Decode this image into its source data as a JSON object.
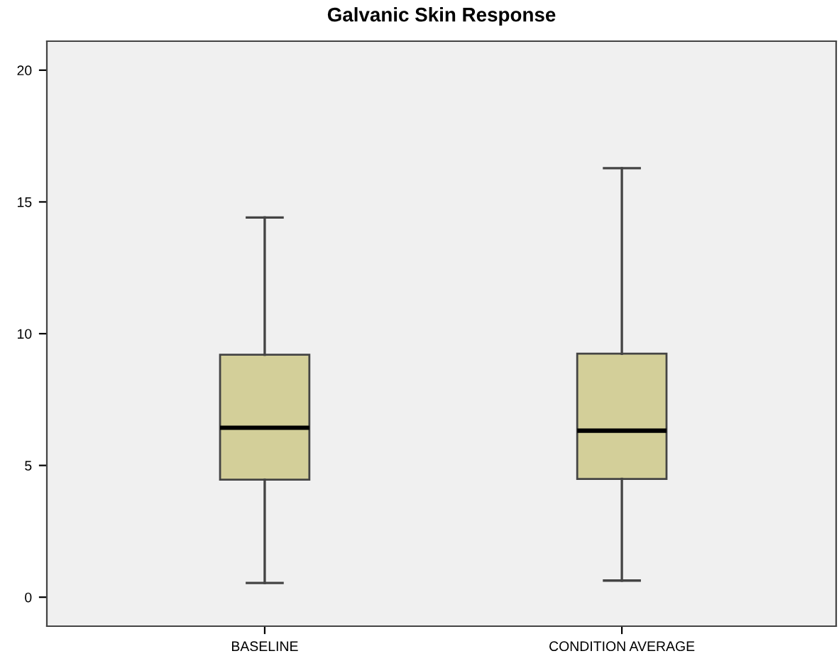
{
  "chart_data": {
    "type": "box",
    "title": "Galvanic Skin Response",
    "categories": [
      "BASELINE",
      "CONDITION AVERAGE"
    ],
    "series": [
      {
        "color": "#d3cf99",
        "boxes": [
          {
            "low": 0.54,
            "q1": 4.46,
            "median": 6.43,
            "q3": 9.2,
            "high": 14.41
          },
          {
            "low": 0.63,
            "q1": 4.49,
            "median": 6.32,
            "q3": 9.24,
            "high": 16.28
          }
        ]
      }
    ],
    "ylim": [
      -1.1,
      21.1
    ],
    "yticks": [
      0,
      5,
      10,
      15,
      20
    ],
    "grid": false
  }
}
